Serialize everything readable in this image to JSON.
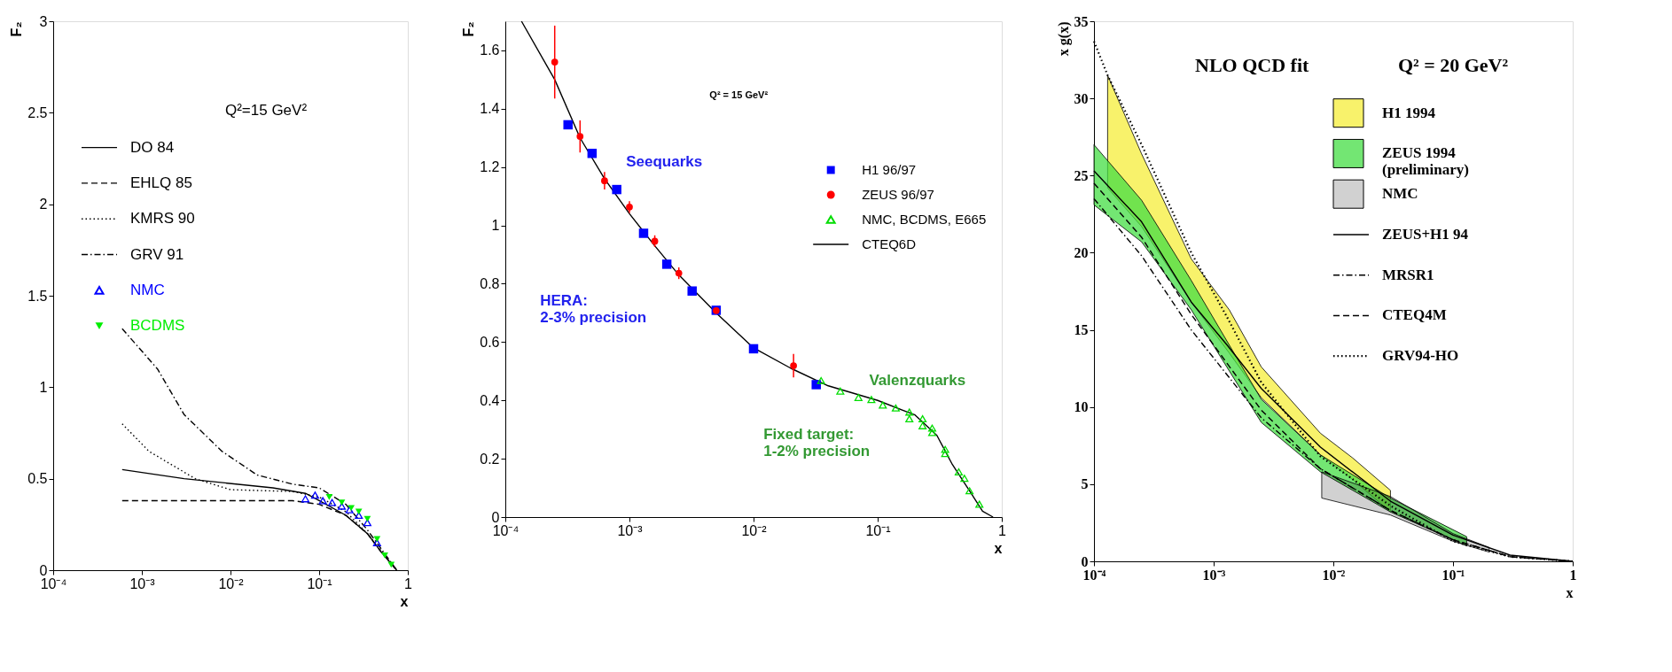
{
  "chart_data": [
    {
      "type": "line",
      "ylabel": "F₂",
      "xlabel": "x",
      "log": "x",
      "xlim": [
        0.0001,
        1
      ],
      "ylim": [
        0,
        3
      ],
      "xticks": [
        {
          "value": 0.0001,
          "label": "10⁻⁴"
        },
        {
          "value": 0.001,
          "label": "10⁻³"
        },
        {
          "value": 0.01,
          "label": "10⁻²"
        },
        {
          "value": 0.1,
          "label": "10⁻¹"
        },
        {
          "value": 1,
          "label": "1"
        }
      ],
      "yticks": [
        0,
        0.5,
        1,
        1.5,
        2,
        2.5,
        3
      ],
      "legend": "top left",
      "annotations": [
        "Q²=15 GeV²"
      ],
      "series": [
        {
          "name": "DO 84",
          "line_style": "solid",
          "color": "#000000",
          "x": [
            0.0006,
            0.003,
            0.03,
            0.07,
            0.1,
            0.2,
            0.35,
            0.5,
            0.75
          ],
          "values": [
            0.55,
            0.5,
            0.45,
            0.42,
            0.38,
            0.3,
            0.2,
            0.1,
            0
          ]
        },
        {
          "name": "EHLQ 85",
          "line_style": "dashed",
          "color": "#000000",
          "x": [
            0.0006,
            0.01,
            0.05,
            0.1,
            0.2,
            0.35,
            0.5,
            0.75
          ],
          "values": [
            0.38,
            0.38,
            0.38,
            0.36,
            0.3,
            0.2,
            0.1,
            0
          ]
        },
        {
          "name": "KMRS 90",
          "line_style": "dotted",
          "color": "#000000",
          "x": [
            0.0006,
            0.0012,
            0.004,
            0.01,
            0.05,
            0.1,
            0.2,
            0.35,
            0.75
          ],
          "values": [
            0.8,
            0.65,
            0.5,
            0.44,
            0.43,
            0.4,
            0.32,
            0.2,
            0
          ]
        },
        {
          "name": "GRV 91",
          "line_style": "dashdot",
          "color": "#000000",
          "x": [
            0.0006,
            0.0015,
            0.003,
            0.008,
            0.02,
            0.05,
            0.1,
            0.2,
            0.35,
            0.75
          ],
          "values": [
            1.32,
            1.1,
            0.85,
            0.65,
            0.52,
            0.47,
            0.45,
            0.36,
            0.22,
            0
          ]
        },
        {
          "name": "NMC",
          "type": "scatter",
          "marker": "triangle",
          "color": "#0000ff",
          "x": [
            0.07,
            0.09,
            0.11,
            0.14,
            0.18,
            0.22,
            0.28,
            0.35,
            0.45
          ],
          "values": [
            0.39,
            0.41,
            0.38,
            0.37,
            0.35,
            0.33,
            0.3,
            0.26,
            0.15
          ]
        },
        {
          "name": "BCDMS",
          "type": "scatter",
          "marker": "triangle-down",
          "color": "#00ee00",
          "x": [
            0.13,
            0.18,
            0.23,
            0.28,
            0.35,
            0.45,
            0.55,
            0.65
          ],
          "values": [
            0.4,
            0.37,
            0.34,
            0.32,
            0.28,
            0.17,
            0.08,
            0.03
          ]
        }
      ]
    },
    {
      "type": "line",
      "ylabel": "F₂",
      "xlabel": "x",
      "log": "x",
      "xlim": [
        0.0001,
        1
      ],
      "ylim": [
        0,
        1.7
      ],
      "xticks": [
        {
          "value": 0.0001,
          "label": "10⁻⁴"
        },
        {
          "value": 0.001,
          "label": "10⁻³"
        },
        {
          "value": 0.01,
          "label": "10⁻²"
        },
        {
          "value": 0.1,
          "label": "10⁻¹"
        },
        {
          "value": 1,
          "label": "1"
        }
      ],
      "yticks": [
        0,
        0.2,
        0.4,
        0.6,
        0.8,
        1,
        1.2,
        1.4,
        1.6
      ],
      "legend": "right",
      "annotations": [
        "Q² = 15 GeV²",
        "Seequarks",
        "HERA:\n2-3% precision",
        "Valenzquarks",
        "Fixed target:\n1-2% precision"
      ],
      "series": [
        {
          "name": "H1 96/97",
          "type": "scatter",
          "marker": "square",
          "color": "#0000ff",
          "x": [
            0.00032,
            0.0005,
            0.00079,
            0.0013,
            0.002,
            0.0032,
            0.005,
            0.01,
            0.032
          ],
          "values": [
            1.345,
            1.247,
            1.123,
            0.973,
            0.867,
            0.775,
            0.709,
            0.577,
            0.454
          ]
        },
        {
          "name": "ZEUS 96/97",
          "type": "scatter",
          "marker": "circle",
          "color": "#ff0000",
          "x": [
            0.00025,
            0.0004,
            0.00063,
            0.001,
            0.0016,
            0.0025,
            0.005,
            0.021
          ],
          "values": [
            1.56,
            1.305,
            1.153,
            1.063,
            0.946,
            0.836,
            0.708,
            0.519
          ],
          "errors": [
            0.125,
            0.055,
            0.03,
            0.02,
            0.02,
            0.02,
            null,
            0.04
          ]
        },
        {
          "name": "NMC, BCDMS, E665",
          "type": "scatter",
          "marker": "triangle",
          "color": "#00dd00",
          "x": [
            0.035,
            0.05,
            0.07,
            0.089,
            0.11,
            0.14,
            0.18,
            0.18,
            0.23,
            0.23,
            0.275,
            0.275,
            0.35,
            0.35,
            0.45,
            0.5,
            0.55,
            0.66
          ],
          "values": [
            0.468,
            0.432,
            0.41,
            0.403,
            0.384,
            0.374,
            0.36,
            0.337,
            0.337,
            0.313,
            0.305,
            0.29,
            0.232,
            0.218,
            0.155,
            0.133,
            0.09,
            0.044
          ]
        },
        {
          "name": "CTEQ6D",
          "line_style": "solid",
          "color": "#000000",
          "x": [
            0.000135,
            0.00025,
            0.0004,
            0.00063,
            0.001,
            0.0016,
            0.0025,
            0.005,
            0.01,
            0.02,
            0.04,
            0.1,
            0.2,
            0.3,
            0.4,
            0.55,
            0.7,
            0.85
          ],
          "values": [
            1.7,
            1.5,
            1.3,
            1.16,
            1.04,
            0.93,
            0.83,
            0.7,
            0.58,
            0.51,
            0.45,
            0.4,
            0.35,
            0.28,
            0.18,
            0.09,
            0.02,
            0
          ]
        }
      ]
    },
    {
      "type": "line",
      "ylabel": "x g(x)",
      "xlabel": "x",
      "log": "x",
      "xlim": [
        0.0001,
        1
      ],
      "ylim": [
        0,
        35
      ],
      "xticks": [
        {
          "value": 0.0001,
          "label": "10⁻⁴"
        },
        {
          "value": 0.001,
          "label": "10⁻³"
        },
        {
          "value": 0.01,
          "label": "10⁻²"
        },
        {
          "value": 0.1,
          "label": "10⁻¹"
        },
        {
          "value": 1,
          "label": "1"
        }
      ],
      "yticks": [
        0,
        5,
        10,
        15,
        20,
        25,
        30,
        35
      ],
      "legend": "top right",
      "annotations": [
        "NLO QCD fit",
        "Q² = 20 GeV²"
      ],
      "series": [
        {
          "name": "H1 1994",
          "type": "area",
          "color": "#f5ee3a",
          "x": [
            0.00013,
            0.00025,
            0.00065,
            0.00135,
            0.0025,
            0.0078,
            0.0145,
            0.03
          ],
          "values": [
            null,
            null,
            null,
            null,
            null,
            null,
            null,
            null
          ],
          "lower": [
            24.2,
            21.7,
            16.8,
            13.5,
            10.6,
            6.9,
            5.3,
            3.2
          ],
          "upper": [
            31.5,
            26.4,
            19.6,
            16.3,
            12.6,
            8.3,
            6.7,
            4.6
          ]
        },
        {
          "name": "ZEUS 1994\n(preliminary)",
          "type": "area",
          "color": "#44dd44",
          "x": [
            0.0001,
            0.00025,
            0.00065,
            0.0025,
            0.0078,
            0.03,
            0.13
          ],
          "values": [
            null,
            null,
            null,
            null,
            null,
            null,
            null
          ],
          "lower": [
            23.1,
            20.7,
            16.3,
            9.0,
            5.8,
            3.2,
            1.0
          ],
          "upper": [
            27.0,
            23.4,
            18.2,
            10.5,
            6.9,
            4.1,
            1.6
          ]
        },
        {
          "name": "NMC",
          "type": "area",
          "color": "#000000",
          "x": [
            0.008,
            0.03,
            0.1,
            0.2
          ],
          "values": [
            null,
            null,
            null,
            null
          ],
          "lower": [
            4.1,
            3.0,
            1.3,
            0.6
          ],
          "upper": [
            5.8,
            4.2,
            1.8,
            0.9
          ]
        },
        {
          "name": "ZEUS+H1 94",
          "line_style": "solid",
          "color": "#000000",
          "x": [
            0.0001,
            0.00025,
            0.00065,
            0.0013,
            0.0025,
            0.0078,
            0.03,
            0.1,
            0.3,
            1
          ],
          "values": [
            25.3,
            22.0,
            16.8,
            14.0,
            11.2,
            7.4,
            3.9,
            1.7,
            0.4,
            0
          ]
        },
        {
          "name": "MRSR1",
          "line_style": "dashdot",
          "color": "#000000",
          "x": [
            0.0001,
            0.00025,
            0.00065,
            0.0025,
            0.0078,
            0.03,
            0.1,
            0.3,
            1
          ],
          "values": [
            23.5,
            19.8,
            15.0,
            9.3,
            6.0,
            3.3,
            1.4,
            0.3,
            0
          ]
        },
        {
          "name": "CTEQ4M",
          "line_style": "dashed",
          "color": "#000000",
          "x": [
            0.0001,
            0.00025,
            0.00065,
            0.0025,
            0.0078,
            0.03,
            0.1,
            0.3,
            1
          ],
          "values": [
            24.5,
            21.0,
            16.0,
            9.8,
            6.0,
            3.3,
            1.4,
            0.3,
            0
          ]
        },
        {
          "name": "GRV94-HO",
          "line_style": "dotted",
          "color": "#000000",
          "x": [
            0.0001,
            0.00013,
            0.00025,
            0.00065,
            0.0013,
            0.0025,
            0.0078,
            0.03,
            0.1,
            0.3,
            1
          ],
          "values": [
            33.7,
            31.5,
            27.0,
            20.0,
            15.8,
            11.6,
            6.8,
            3.6,
            1.3,
            0.3,
            0
          ]
        }
      ]
    }
  ]
}
